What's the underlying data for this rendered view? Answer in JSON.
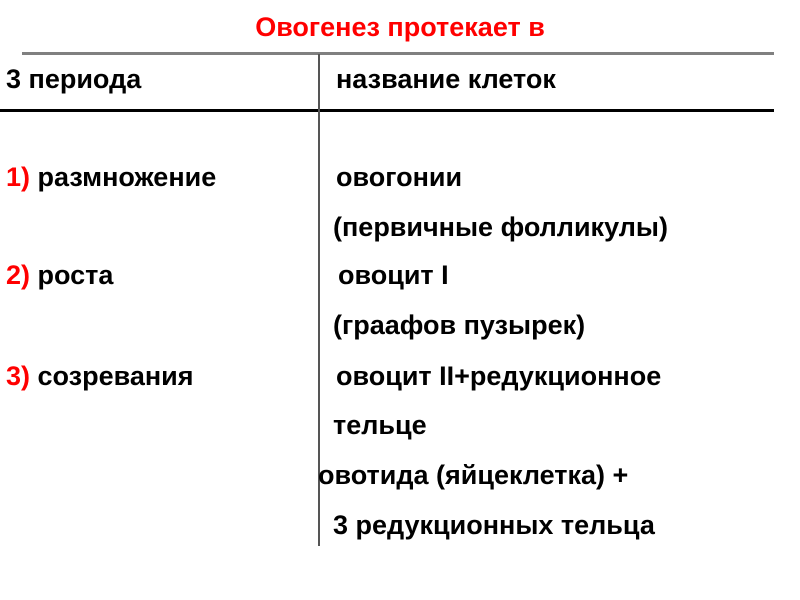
{
  "title": "Овогенез протекает в",
  "header": {
    "col1": "3 периода",
    "col2": "название клеток"
  },
  "rows": [
    {
      "num": "1)",
      "period": " размножение",
      "cells": [
        "овогонии",
        "(первичные фолликулы)"
      ]
    },
    {
      "num": "2)",
      "period": " роста",
      "cells": [
        "овоцит I",
        "(граафов пузырек)"
      ]
    },
    {
      "num": "3)",
      "period": " созревания",
      "cells": [
        "овоцит II+редукционное",
        "тельце",
        "овотида (яйцеклетка) +",
        "3 редукционных тельца"
      ]
    }
  ],
  "colors": {
    "title": "#ff0000",
    "numbers": "#ff0000",
    "text": "#000000"
  }
}
